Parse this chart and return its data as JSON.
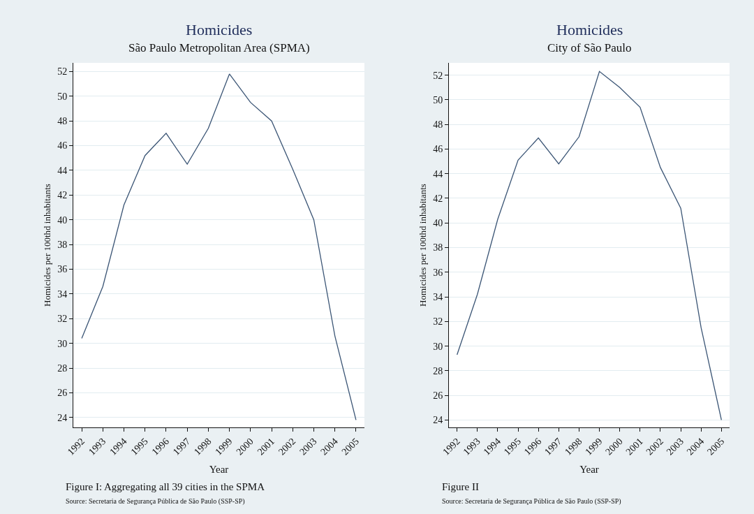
{
  "chart_data": [
    {
      "type": "line",
      "title": "Homicides",
      "subtitle": "São Paulo Metropolitan Area (SPMA)",
      "xlabel": "Year",
      "ylabel": "Homicides per 100thd inhabitants",
      "categories": [
        "1992",
        "1993",
        "1994",
        "1995",
        "1996",
        "1997",
        "1998",
        "1999",
        "2000",
        "2001",
        "2002",
        "2003",
        "2004",
        "2005"
      ],
      "series": [
        {
          "color": "#3b5575",
          "values": [
            30.4,
            34.6,
            41.2,
            45.2,
            47.0,
            44.5,
            47.4,
            51.8,
            49.5,
            48.0,
            44.1,
            40.0,
            30.6,
            23.8
          ]
        }
      ],
      "ylim": [
        23.2,
        52.7
      ],
      "yticks": [
        24,
        26,
        28,
        30,
        32,
        34,
        36,
        38,
        40,
        42,
        44,
        46,
        48,
        50,
        52
      ],
      "grid": "y",
      "marker": "none",
      "line_style": "solid",
      "annotations": [
        "Figure I: Aggregating all 39 cities in the SPMA",
        "Source: Secretaria de Segurança Pública de São Paulo (SSP-SP)"
      ]
    },
    {
      "type": "line",
      "title": "Homicides",
      "subtitle": "City of São Paulo",
      "xlabel": "Year",
      "ylabel": "Homicides per 100thd inhabitants",
      "categories": [
        "1992",
        "1993",
        "1994",
        "1995",
        "1996",
        "1997",
        "1998",
        "1999",
        "2000",
        "2001",
        "2002",
        "2003",
        "2004",
        "2005"
      ],
      "series": [
        {
          "color": "#3b5575",
          "values": [
            29.3,
            34.2,
            40.3,
            45.1,
            46.9,
            44.8,
            47.0,
            52.3,
            51.0,
            49.4,
            44.5,
            41.2,
            31.5,
            24.0
          ]
        }
      ],
      "ylim": [
        23.4,
        53.0
      ],
      "yticks": [
        24,
        26,
        28,
        30,
        32,
        34,
        36,
        38,
        40,
        42,
        44,
        46,
        48,
        50,
        52
      ],
      "grid": "y",
      "marker": "none",
      "line_style": "solid",
      "annotations": [
        "Figure II",
        "Source: Secretaria de Segurança Pública de São Paulo (SSP-SP)"
      ]
    }
  ]
}
